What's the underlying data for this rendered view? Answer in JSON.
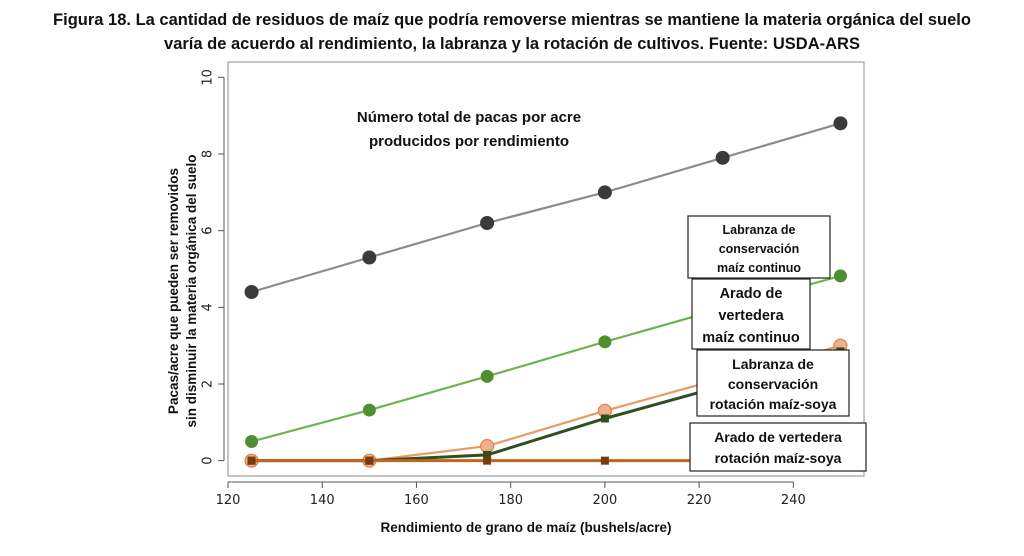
{
  "figure": {
    "title_line1": "Figura 18. La cantidad de residuos de maíz que podría removerse mientras se mantiene la materia orgánica del suelo",
    "title_line2": "varía de acuerdo al rendimiento, la labranza y la rotación de cultivos. Fuente: USDA-ARS"
  },
  "chart_data": {
    "type": "line",
    "xlabel": "Rendimiento de grano de maíz  (bushels/acre)",
    "ylabel_line1": "Pacas/acre que pueden ser removidos",
    "ylabel_line2": "sin disminuir la materia orgánica del suelo",
    "xlim": [
      120,
      255
    ],
    "ylim": [
      -0.4,
      10.4
    ],
    "xticks": [
      120,
      140,
      160,
      180,
      200,
      220,
      240
    ],
    "yticks": [
      0,
      2,
      4,
      6,
      8,
      10
    ],
    "x": [
      125,
      150,
      175,
      200,
      225,
      250
    ],
    "series": [
      {
        "key": "total",
        "values": [
          4.4,
          5.3,
          6.2,
          7.0,
          7.9,
          8.8
        ],
        "color": "#8c8c8c",
        "marker": "circle",
        "marker_color": "#3a3a3a"
      },
      {
        "key": "cons_cont",
        "values": [
          0.5,
          1.32,
          2.2,
          3.1,
          3.97,
          4.82
        ],
        "color": "#6fb34f",
        "marker": "circle",
        "marker_color": "#4f8f2f"
      },
      {
        "key": "arado_cont",
        "values": [
          0.0,
          0.0,
          0.38,
          1.3,
          2.15,
          3.0
        ],
        "color": "#e89a62",
        "marker": "circle",
        "marker_color": "#f2b08a"
      },
      {
        "key": "cons_rot",
        "values": [
          0.0,
          0.0,
          0.15,
          1.1,
          1.95,
          2.85
        ],
        "color": "#2f4f1f",
        "marker": "square",
        "marker_color": "#2f4f1f"
      },
      {
        "key": "arado_rot",
        "values": [
          0.0,
          0.0,
          0.0,
          0.0,
          0.0,
          0.0
        ],
        "color": "#c0651f",
        "marker": "square",
        "marker_color": "#7a3a10"
      }
    ],
    "annotations": {
      "total": [
        "Número total de pacas por acre",
        "producidos por rendimiento"
      ],
      "cons_cont": [
        "Labranza de",
        "conservación",
        "maíz continuo"
      ],
      "arado_cont": [
        "Arado de",
        "vertedera",
        "maíz continuo"
      ],
      "cons_rot": [
        "Labranza de",
        "conservación",
        "rotación maíz-soya"
      ],
      "arado_rot": [
        "Arado de vertedera",
        "rotación maíz-soya"
      ]
    }
  }
}
